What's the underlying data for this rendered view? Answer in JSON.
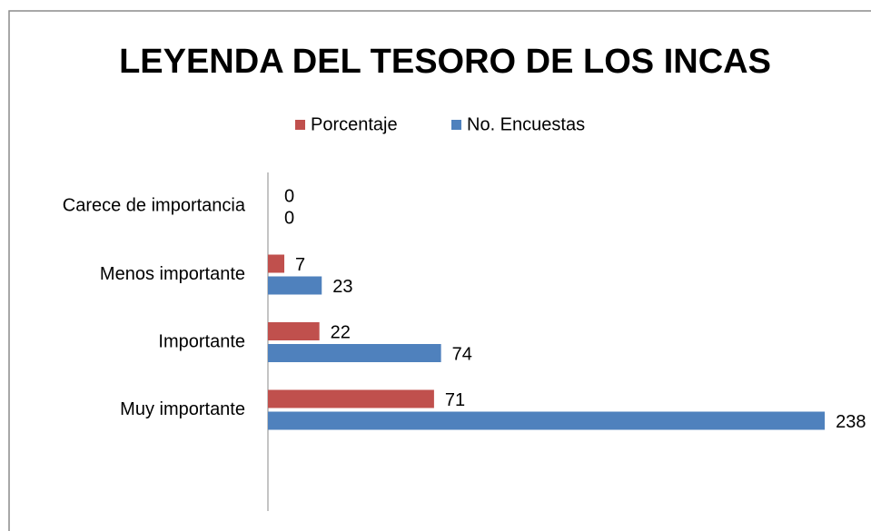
{
  "chart_data": {
    "type": "hbar",
    "title": "LEYENDA DEL TESORO DE LOS INCAS",
    "categories": [
      "Carece de importancia",
      "Menos importante",
      "Importante",
      "Muy importante"
    ],
    "series": [
      {
        "name": "Porcentaje",
        "color": "#c0504d",
        "values": [
          0,
          7,
          22,
          71
        ]
      },
      {
        "name": "No. Encuestas",
        "color": "#4f81bd",
        "values": [
          0,
          23,
          74,
          238
        ]
      }
    ],
    "xlim": [
      0,
      250
    ],
    "legend": "top"
  }
}
